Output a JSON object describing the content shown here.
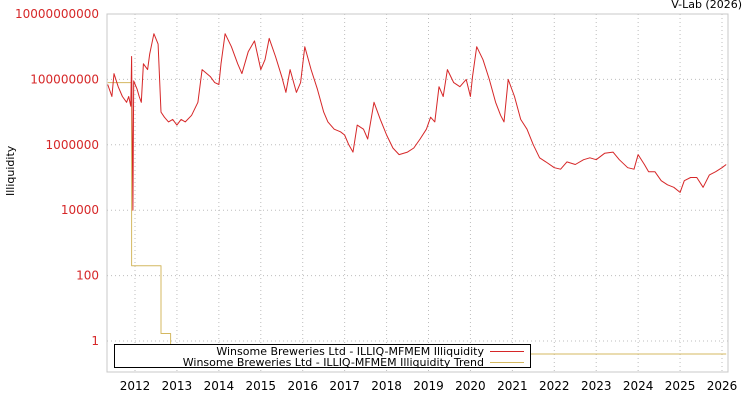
{
  "header": {
    "credit": "V-Lab (2026)"
  },
  "chart_data": {
    "type": "line",
    "title": "",
    "xlabel": "",
    "ylabel": "Illiquidity",
    "yscale": "log",
    "ylim": [
      0.2,
      10000000000
    ],
    "xlim": [
      2011.35,
      2026.1
    ],
    "y_ticks": [
      {
        "value": 10000000000,
        "label": "10000000000"
      },
      {
        "value": 100000000,
        "label": "100000000"
      },
      {
        "value": 1000000,
        "label": "1000000"
      },
      {
        "value": 10000,
        "label": "10000"
      },
      {
        "value": 100,
        "label": "100"
      },
      {
        "value": 1,
        "label": "1"
      }
    ],
    "x_ticks": [
      "2012",
      "2013",
      "2014",
      "2015",
      "2016",
      "2017",
      "2018",
      "2019",
      "2020",
      "2021",
      "2022",
      "2023",
      "2024",
      "2025",
      "2026"
    ],
    "grid": true,
    "legend_position": "bottom-left-inside",
    "series": [
      {
        "name": "Winsome Breweries Ltd - ILLIQ-MFMEM Illiquidity",
        "color": "#d62728",
        "points": [
          [
            2011.35,
            70000000
          ],
          [
            2011.45,
            30000000
          ],
          [
            2011.5,
            150000000
          ],
          [
            2011.6,
            60000000
          ],
          [
            2011.7,
            30000000
          ],
          [
            2011.8,
            20000000
          ],
          [
            2011.85,
            30000000
          ],
          [
            2011.9,
            15000000
          ],
          [
            2011.92,
            500000000
          ],
          [
            2011.95,
            10000
          ],
          [
            2011.97,
            90000000
          ],
          [
            2012.05,
            50000000
          ],
          [
            2012.1,
            30000000
          ],
          [
            2012.15,
            20000000
          ],
          [
            2012.2,
            300000000
          ],
          [
            2012.3,
            200000000
          ],
          [
            2012.35,
            600000000
          ],
          [
            2012.45,
            2500000000
          ],
          [
            2012.55,
            1200000000
          ],
          [
            2012.62,
            10000000
          ],
          [
            2012.7,
            7000000
          ],
          [
            2012.8,
            5000000
          ],
          [
            2012.9,
            6000000
          ],
          [
            2013.0,
            4000000
          ],
          [
            2013.1,
            6000000
          ],
          [
            2013.2,
            5000000
          ],
          [
            2013.35,
            8000000
          ],
          [
            2013.5,
            20000000
          ],
          [
            2013.6,
            200000000
          ],
          [
            2013.8,
            120000000
          ],
          [
            2013.9,
            80000000
          ],
          [
            2014.0,
            70000000
          ],
          [
            2014.05,
            300000000
          ],
          [
            2014.15,
            2500000000
          ],
          [
            2014.3,
            1000000000
          ],
          [
            2014.45,
            300000000
          ],
          [
            2014.55,
            150000000
          ],
          [
            2014.7,
            700000000
          ],
          [
            2014.85,
            1500000000
          ],
          [
            2015.0,
            200000000
          ],
          [
            2015.1,
            400000000
          ],
          [
            2015.2,
            1800000000
          ],
          [
            2015.35,
            500000000
          ],
          [
            2015.5,
            120000000
          ],
          [
            2015.6,
            40000000
          ],
          [
            2015.7,
            200000000
          ],
          [
            2015.85,
            40000000
          ],
          [
            2015.95,
            80000000
          ],
          [
            2016.05,
            1000000000
          ],
          [
            2016.2,
            200000000
          ],
          [
            2016.35,
            50000000
          ],
          [
            2016.5,
            10000000
          ],
          [
            2016.6,
            5000000
          ],
          [
            2016.75,
            3000000
          ],
          [
            2016.9,
            2500000
          ],
          [
            2017.0,
            2000000
          ],
          [
            2017.1,
            1000000
          ],
          [
            2017.2,
            600000
          ],
          [
            2017.3,
            4000000
          ],
          [
            2017.45,
            3000000
          ],
          [
            2017.55,
            1500000
          ],
          [
            2017.7,
            20000000
          ],
          [
            2017.85,
            6000000
          ],
          [
            2018.0,
            2000000
          ],
          [
            2018.15,
            800000
          ],
          [
            2018.3,
            500000
          ],
          [
            2018.5,
            600000
          ],
          [
            2018.65,
            800000
          ],
          [
            2018.8,
            1500000
          ],
          [
            2018.95,
            3000000
          ],
          [
            2019.05,
            7000000
          ],
          [
            2019.15,
            5000000
          ],
          [
            2019.25,
            60000000
          ],
          [
            2019.35,
            30000000
          ],
          [
            2019.45,
            200000000
          ],
          [
            2019.6,
            80000000
          ],
          [
            2019.75,
            60000000
          ],
          [
            2019.9,
            100000000
          ],
          [
            2020.0,
            30000000
          ],
          [
            2020.05,
            120000000
          ],
          [
            2020.15,
            1000000000
          ],
          [
            2020.3,
            400000000
          ],
          [
            2020.45,
            100000000
          ],
          [
            2020.6,
            20000000
          ],
          [
            2020.72,
            8000000
          ],
          [
            2020.8,
            5000000
          ],
          [
            2020.9,
            100000000
          ],
          [
            2021.05,
            30000000
          ],
          [
            2021.2,
            6000000
          ],
          [
            2021.35,
            3000000
          ],
          [
            2021.5,
            1000000
          ],
          [
            2021.65,
            400000
          ],
          [
            2021.8,
            300000
          ],
          [
            2022.0,
            200000
          ],
          [
            2022.15,
            180000
          ],
          [
            2022.3,
            300000
          ],
          [
            2022.5,
            250000
          ],
          [
            2022.7,
            350000
          ],
          [
            2022.85,
            400000
          ],
          [
            2023.0,
            350000
          ],
          [
            2023.2,
            550000
          ],
          [
            2023.4,
            600000
          ],
          [
            2023.55,
            350000
          ],
          [
            2023.75,
            200000
          ],
          [
            2023.9,
            180000
          ],
          [
            2024.0,
            500000
          ],
          [
            2024.15,
            250000
          ],
          [
            2024.25,
            150000
          ],
          [
            2024.4,
            150000
          ],
          [
            2024.55,
            80000
          ],
          [
            2024.7,
            60000
          ],
          [
            2024.85,
            50000
          ],
          [
            2025.0,
            35000
          ],
          [
            2025.1,
            80000
          ],
          [
            2025.25,
            100000
          ],
          [
            2025.4,
            100000
          ],
          [
            2025.55,
            50000
          ],
          [
            2025.7,
            120000
          ],
          [
            2025.85,
            150000
          ],
          [
            2026.0,
            200000
          ],
          [
            2026.1,
            250000
          ]
        ]
      },
      {
        "name": "Winsome Breweries Ltd - ILLIQ-MFMEM Illiquidity Trend",
        "color": "#d4b860",
        "points": [
          [
            2011.35,
            80000000
          ],
          [
            2011.92,
            80000000
          ],
          [
            2011.92,
            200
          ],
          [
            2012.62,
            200
          ],
          [
            2012.62,
            1.7
          ],
          [
            2012.85,
            1.7
          ],
          [
            2012.85,
            0.4
          ],
          [
            2026.1,
            0.4
          ]
        ]
      }
    ]
  }
}
